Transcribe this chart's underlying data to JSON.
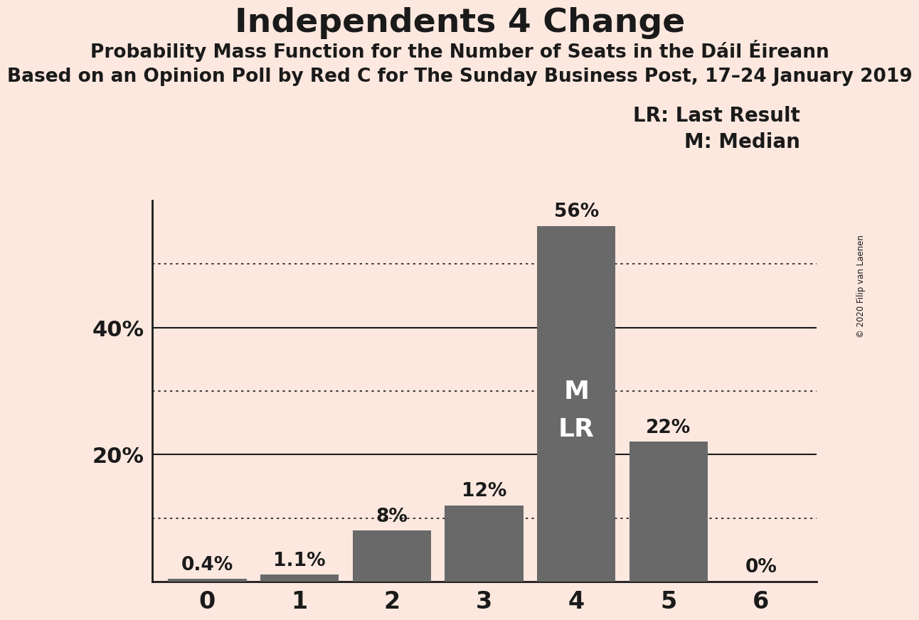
{
  "title": "Independents 4 Change",
  "subtitle1": "Probability Mass Function for the Number of Seats in the Dáil Éireann",
  "subtitle2": "Based on an Opinion Poll by Red C for The Sunday Business Post, 17–24 January 2019",
  "copyright_text": "© 2020 Filip van Laenen",
  "categories": [
    0,
    1,
    2,
    3,
    4,
    5,
    6
  ],
  "values": [
    0.4,
    1.1,
    8.0,
    12.0,
    56.0,
    22.0,
    0.0
  ],
  "labels": [
    "0.4%",
    "1.1%",
    "8%",
    "12%",
    "56%",
    "22%",
    "0%"
  ],
  "bar_color": "#696969",
  "background_color": "#fce8df",
  "text_color": "#1a1a1a",
  "yticks_solid": [
    20,
    40
  ],
  "yticks_dotted": [
    10,
    30,
    50
  ],
  "ylim": [
    0,
    60
  ],
  "legend_lr": "LR: Last Result",
  "legend_m": "M: Median",
  "median_bar": 4,
  "lr_bar": 4,
  "annotation_color": "#ffffff",
  "title_fontsize": 34,
  "subtitle1_fontsize": 19,
  "subtitle2_fontsize": 19,
  "label_fontsize": 19,
  "ytick_fontsize": 22,
  "xtick_fontsize": 24,
  "legend_fontsize": 20,
  "annot_fontsize": 26
}
